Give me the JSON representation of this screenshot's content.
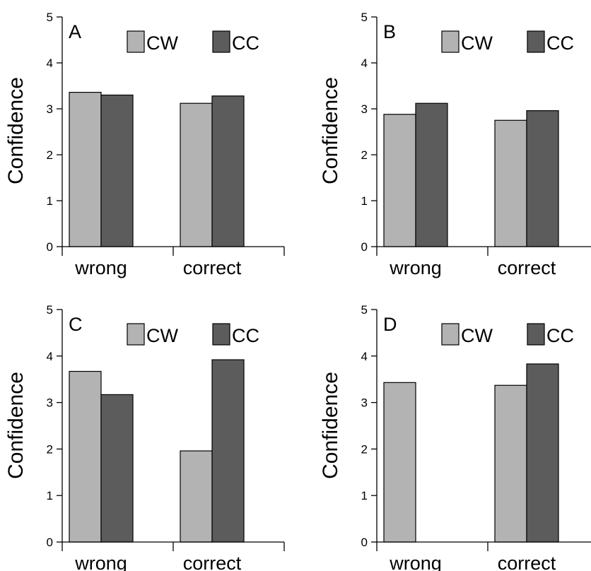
{
  "figure_panels": 4,
  "colors": {
    "CW": "#b3b3b3",
    "CC": "#5c5c5c",
    "axis": "#000000"
  },
  "chart_data": [
    {
      "type": "bar",
      "panel_label": "A",
      "categories": [
        "wrong",
        "correct"
      ],
      "series": [
        {
          "name": "CW",
          "values": [
            3.36,
            3.12
          ]
        },
        {
          "name": "CC",
          "values": [
            3.3,
            3.28
          ]
        }
      ],
      "ylabel": "Confidence",
      "ylim": [
        0,
        5
      ],
      "yticks": [
        "0",
        "1",
        "2",
        "3",
        "4",
        "5"
      ],
      "legend": "top-right",
      "grid": false
    },
    {
      "type": "bar",
      "panel_label": "B",
      "categories": [
        "wrong",
        "correct"
      ],
      "series": [
        {
          "name": "CW",
          "values": [
            2.88,
            2.75
          ]
        },
        {
          "name": "CC",
          "values": [
            3.12,
            2.96
          ]
        }
      ],
      "ylabel": "Confidence",
      "ylim": [
        0,
        5
      ],
      "yticks": [
        "0",
        "1",
        "2",
        "3",
        "4",
        "5"
      ],
      "legend": "top-right",
      "grid": false
    },
    {
      "type": "bar",
      "panel_label": "C",
      "categories": [
        "wrong",
        "correct"
      ],
      "series": [
        {
          "name": "CW",
          "values": [
            3.67,
            1.96
          ]
        },
        {
          "name": "CC",
          "values": [
            3.17,
            3.92
          ]
        }
      ],
      "ylabel": "Confidence",
      "ylim": [
        0,
        5
      ],
      "yticks": [
        "0",
        "1",
        "2",
        "3",
        "4",
        "5"
      ],
      "legend": "top-right",
      "grid": false
    },
    {
      "type": "bar",
      "panel_label": "D",
      "categories": [
        "wrong",
        "correct"
      ],
      "series": [
        {
          "name": "CW",
          "values": [
            3.43,
            3.37
          ]
        },
        {
          "name": "CC",
          "values": [
            null,
            3.83
          ]
        }
      ],
      "ylabel": "Confidence",
      "ylim": [
        0,
        5
      ],
      "yticks": [
        "0",
        "1",
        "2",
        "3",
        "4",
        "5"
      ],
      "legend": "top-right",
      "grid": false
    }
  ]
}
